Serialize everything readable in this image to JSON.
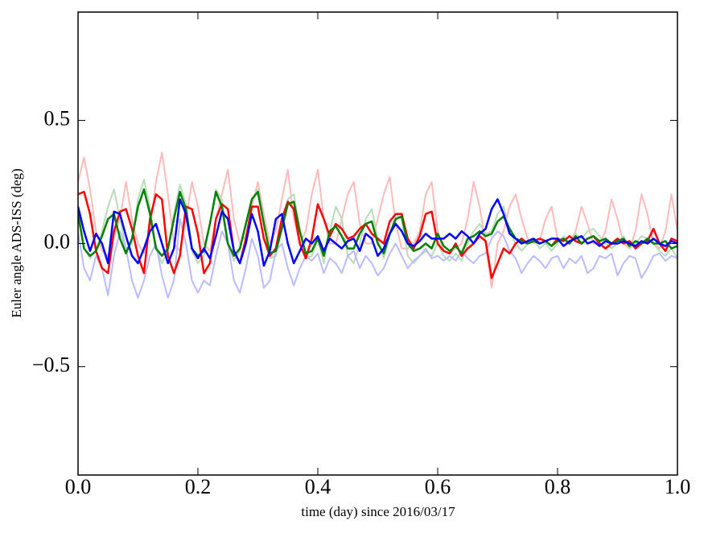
{
  "chart_data": {
    "type": "line",
    "x_label": "time (day) since 2016/03/17",
    "y_label": "Euler angle ADS-ISS (deg)",
    "xlim": [
      0,
      1
    ],
    "ylim": [
      -0.94,
      0.94
    ],
    "xticks": [
      {
        "value": 0,
        "label": "0.0"
      },
      {
        "value": 0.2,
        "label": "0.2"
      },
      {
        "value": 0.4,
        "label": "0.4"
      },
      {
        "value": 0.6,
        "label": "0.6"
      },
      {
        "value": 0.8,
        "label": "0.8"
      },
      {
        "value": 1,
        "label": "1.0"
      }
    ],
    "yticks": [
      {
        "value": -0.5,
        "label": "−0.5"
      },
      {
        "value": 0,
        "label": "0.0"
      },
      0.5
    ],
    "grid": false,
    "x": [
      0,
      0.01,
      0.02,
      0.03,
      0.04,
      0.05,
      0.06,
      0.07,
      0.08,
      0.09,
      0.1,
      0.11,
      0.12,
      0.13,
      0.14,
      0.15,
      0.16,
      0.17,
      0.18,
      0.19,
      0.2,
      0.21,
      0.22,
      0.23,
      0.24,
      0.25,
      0.26,
      0.27,
      0.28,
      0.29,
      0.3,
      0.31,
      0.32,
      0.33,
      0.34,
      0.35,
      0.36,
      0.37,
      0.38,
      0.39,
      0.4,
      0.41,
      0.42,
      0.43,
      0.44,
      0.45,
      0.46,
      0.47,
      0.48,
      0.49,
      0.5,
      0.51,
      0.52,
      0.53,
      0.54,
      0.55,
      0.56,
      0.57,
      0.58,
      0.59,
      0.6,
      0.61,
      0.62,
      0.63,
      0.64,
      0.65,
      0.66,
      0.67,
      0.68,
      0.69,
      0.7,
      0.71,
      0.72,
      0.73,
      0.74,
      0.75,
      0.76,
      0.77,
      0.78,
      0.79,
      0.8,
      0.81,
      0.82,
      0.83,
      0.84,
      0.85,
      0.86,
      0.87,
      0.88,
      0.89,
      0.9,
      0.91,
      0.92,
      0.93,
      0.94,
      0.95,
      0.96,
      0.97,
      0.98,
      0.99,
      1
    ],
    "series": [
      {
        "color": "#ffbbbb",
        "width": 2,
        "values": [
          0.25,
          0.35,
          0.22,
          0.05,
          -0.03,
          -0.05,
          0.03,
          0.1,
          0.25,
          0.1,
          0.0,
          -0.04,
          0.05,
          0.25,
          0.37,
          0.2,
          0.0,
          -0.03,
          0.1,
          0.25,
          0.15,
          0.0,
          -0.03,
          0.1,
          0.2,
          0.3,
          0.1,
          0.0,
          0.03,
          0.15,
          0.25,
          0.12,
          0.0,
          0.05,
          0.18,
          0.3,
          0.1,
          0.0,
          0.05,
          0.2,
          0.3,
          0.1,
          0.0,
          0.0,
          0.1,
          0.2,
          0.25,
          0.08,
          0.0,
          0.0,
          0.1,
          0.2,
          0.27,
          0.08,
          -0.02,
          -0.02,
          0.0,
          0.05,
          0.2,
          0.25,
          0.05,
          -0.03,
          -0.04,
          -0.02,
          0.0,
          0.1,
          0.25,
          0.15,
          0.0,
          -0.18,
          0.0,
          0.05,
          0.15,
          0.2,
          0.1,
          0.02,
          0.0,
          0.01,
          0.1,
          0.15,
          0.02,
          -0.01,
          0.0,
          0.05,
          0.15,
          0.08,
          0.0,
          0.0,
          0.05,
          0.18,
          0.1,
          0.0,
          -0.02,
          0.05,
          0.2,
          0.12,
          0.0,
          -0.02,
          0.05,
          0.2,
          0.05
        ]
      },
      {
        "color": "#b8dcb8",
        "width": 2,
        "values": [
          0.15,
          -0.02,
          -0.06,
          -0.03,
          0.05,
          0.15,
          0.22,
          0.1,
          -0.02,
          0.0,
          0.18,
          0.26,
          0.15,
          -0.02,
          -0.08,
          -0.03,
          0.12,
          0.24,
          0.16,
          -0.03,
          -0.08,
          -0.05,
          0.08,
          0.22,
          0.18,
          0.0,
          -0.07,
          -0.03,
          0.08,
          0.18,
          0.22,
          0.08,
          -0.06,
          -0.05,
          0.06,
          0.18,
          0.2,
          0.05,
          -0.06,
          -0.05,
          0.02,
          -0.08,
          0.05,
          0.15,
          0.1,
          -0.05,
          -0.08,
          0.0,
          0.1,
          0.14,
          0.02,
          -0.06,
          0.03,
          0.12,
          0.1,
          -0.05,
          -0.08,
          -0.05,
          -0.03,
          -0.05,
          0.0,
          -0.05,
          -0.07,
          -0.04,
          -0.07,
          0.0,
          0.05,
          0.08,
          0.04,
          0.05,
          0.12,
          0.15,
          0.05,
          0.0,
          -0.03,
          0.0,
          0.02,
          -0.02,
          0.0,
          -0.03,
          0.0,
          0.03,
          0.0,
          0.04,
          0.02,
          0.05,
          0.06,
          0.03,
          0.0,
          -0.02,
          0.0,
          0.03,
          -0.02,
          0.0,
          0.03,
          0.02,
          0.0,
          -0.03,
          -0.05,
          -0.02,
          -0.06
        ]
      },
      {
        "color": "#bbbbff",
        "width": 2,
        "values": [
          0.05,
          -0.1,
          -0.15,
          -0.05,
          -0.1,
          -0.21,
          -0.05,
          0.05,
          -0.02,
          -0.15,
          -0.22,
          -0.15,
          -0.05,
          0.0,
          -0.13,
          -0.22,
          -0.15,
          0.1,
          0.0,
          -0.15,
          -0.2,
          -0.15,
          -0.17,
          -0.05,
          0.05,
          0.0,
          -0.15,
          -0.2,
          -0.1,
          0.02,
          -0.05,
          -0.18,
          -0.15,
          -0.03,
          0.0,
          -0.1,
          -0.17,
          -0.1,
          -0.05,
          -0.07,
          -0.04,
          -0.12,
          -0.06,
          -0.08,
          -0.12,
          -0.05,
          -0.03,
          -0.1,
          -0.05,
          -0.08,
          -0.13,
          -0.1,
          -0.04,
          0.0,
          -0.05,
          -0.1,
          -0.07,
          -0.05,
          -0.02,
          -0.06,
          -0.05,
          -0.07,
          -0.05,
          -0.07,
          -0.03,
          -0.06,
          -0.08,
          -0.05,
          -0.04,
          0.02,
          0.05,
          0.03,
          -0.03,
          -0.06,
          -0.12,
          -0.08,
          -0.05,
          -0.07,
          -0.1,
          -0.06,
          -0.05,
          -0.1,
          -0.06,
          -0.08,
          -0.05,
          -0.12,
          -0.1,
          -0.05,
          -0.06,
          -0.04,
          -0.13,
          -0.08,
          -0.05,
          -0.06,
          -0.14,
          -0.1,
          -0.05,
          -0.04,
          -0.07,
          -0.05,
          -0.06
        ]
      },
      {
        "color": "#ff0000",
        "width": 2.5,
        "values": [
          0.2,
          0.21,
          0.12,
          -0.03,
          -0.1,
          -0.12,
          0.05,
          0.13,
          0.14,
          0.06,
          -0.05,
          -0.12,
          0.1,
          0.2,
          0.18,
          -0.05,
          -0.12,
          -0.05,
          0.15,
          0.14,
          0.04,
          -0.12,
          -0.08,
          0.1,
          0.16,
          0.14,
          -0.03,
          -0.08,
          0.02,
          0.15,
          0.15,
          0.02,
          -0.05,
          -0.02,
          0.1,
          0.17,
          0.14,
          0.0,
          -0.06,
          0.02,
          0.16,
          0.1,
          0.03,
          0.08,
          0.06,
          0.02,
          0.03,
          0.06,
          0.08,
          0.04,
          0.02,
          0.0,
          0.09,
          0.12,
          0.12,
          0.02,
          -0.02,
          0.03,
          0.12,
          0.13,
          0.0,
          -0.03,
          -0.04,
          0.0,
          -0.05,
          -0.02,
          0.0,
          0.03,
          0.01,
          -0.14,
          -0.08,
          -0.02,
          -0.04,
          0.0,
          0.02,
          0.0,
          0.01,
          0.02,
          0.01,
          -0.01,
          0.02,
          0.01,
          0.03,
          0.01,
          0.0,
          0.02,
          0.03,
          0.0,
          -0.02,
          0.0,
          0.02,
          0.0,
          0.01,
          -0.02,
          0.0,
          0.01,
          0.06,
          0.0,
          -0.03,
          0.02,
          0.01
        ]
      },
      {
        "color": "#008000",
        "width": 2.5,
        "values": [
          0.12,
          -0.02,
          -0.05,
          -0.03,
          0.03,
          0.1,
          0.12,
          0.02,
          -0.04,
          0.02,
          0.15,
          0.22,
          0.12,
          -0.02,
          -0.05,
          -0.02,
          0.1,
          0.21,
          0.14,
          -0.02,
          -0.05,
          -0.03,
          0.08,
          0.21,
          0.15,
          0.0,
          -0.05,
          -0.02,
          0.08,
          0.18,
          0.21,
          0.08,
          -0.04,
          -0.03,
          0.06,
          0.16,
          0.17,
          0.05,
          -0.04,
          -0.03,
          0.02,
          -0.05,
          0.05,
          0.07,
          0.03,
          -0.02,
          -0.02,
          0.04,
          0.08,
          0.09,
          0.0,
          -0.04,
          0.04,
          0.1,
          0.11,
          0.0,
          -0.03,
          -0.02,
          0.0,
          -0.02,
          0.04,
          -0.01,
          -0.03,
          -0.01,
          -0.04,
          0.02,
          0.03,
          0.05,
          0.03,
          0.04,
          0.09,
          0.11,
          0.06,
          0.02,
          0.01,
          0.0,
          0.01,
          0.0,
          0.01,
          -0.01,
          0.01,
          0.02,
          0.0,
          0.03,
          0.0,
          0.02,
          0.03,
          0.01,
          0.02,
          0.0,
          0.01,
          0.02,
          -0.01,
          0.01,
          0.0,
          0.02,
          0.0,
          0.0,
          0.01,
          -0.02,
          -0.01
        ]
      },
      {
        "color": "#0000ff",
        "width": 2.5,
        "values": [
          0.15,
          0.05,
          -0.03,
          0.04,
          0.0,
          -0.08,
          0.13,
          0.12,
          0.03,
          -0.05,
          -0.08,
          -0.02,
          0.05,
          0.08,
          0.0,
          -0.08,
          -0.02,
          0.18,
          0.12,
          -0.02,
          -0.06,
          -0.02,
          -0.06,
          0.03,
          0.13,
          0.1,
          -0.03,
          -0.08,
          0.0,
          0.12,
          0.05,
          -0.09,
          -0.03,
          0.1,
          0.12,
          0.0,
          -0.08,
          -0.03,
          0.02,
          0.0,
          0.03,
          -0.03,
          0.02,
          0.0,
          -0.02,
          0.01,
          0.02,
          -0.03,
          0.04,
          0.02,
          -0.05,
          -0.02,
          0.04,
          0.08,
          0.05,
          0.0,
          -0.01,
          0.01,
          0.04,
          0.02,
          0.02,
          0.02,
          0.04,
          0.02,
          0.05,
          0.03,
          0.0,
          0.04,
          0.06,
          0.14,
          0.18,
          0.12,
          0.04,
          0.02,
          0.0,
          0.01,
          0.02,
          0.0,
          0.01,
          0.02,
          0.02,
          -0.01,
          0.01,
          0.02,
          0.03,
          0.0,
          0.01,
          -0.01,
          0.01,
          0.0,
          0.0,
          0.01,
          0.0,
          -0.01,
          0.01,
          0.0,
          0.02,
          0.0,
          -0.01,
          0.01,
          0.0
        ]
      }
    ]
  }
}
